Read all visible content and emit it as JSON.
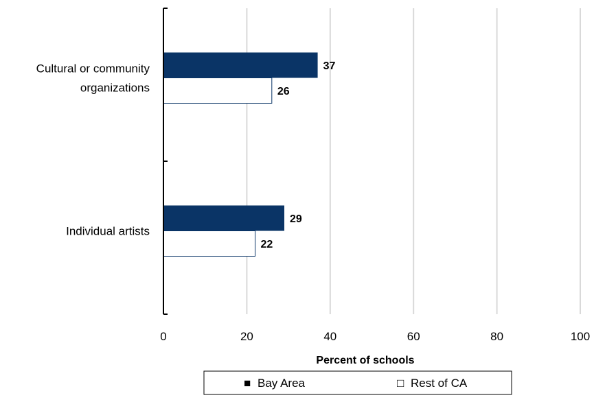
{
  "chart_data": {
    "type": "bar",
    "orientation": "horizontal",
    "categories": [
      [
        "Cultural or community",
        "organizations"
      ],
      [
        "Individual artists"
      ]
    ],
    "series": [
      {
        "name": "Bay Area",
        "values": [
          37,
          29
        ],
        "color": "#0a3466",
        "fill": "solid"
      },
      {
        "name": "Rest of CA",
        "values": [
          26,
          22
        ],
        "color": "#0a3466",
        "fill": "none"
      }
    ],
    "xlabel": "Percent of schools",
    "xlim": [
      0,
      100
    ],
    "xticks": [
      0,
      20,
      40,
      60,
      80,
      100
    ],
    "grid": "vertical",
    "legend": "bottom",
    "legend_markers": [
      "■",
      "□"
    ]
  }
}
